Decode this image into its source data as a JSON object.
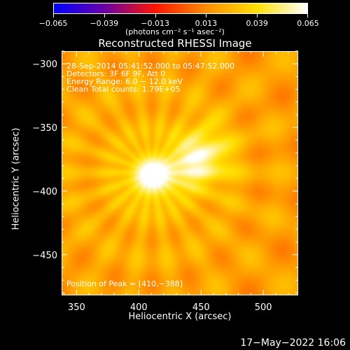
{
  "chart_data": {
    "type": "heatmap",
    "title": "Reconstructed RHESSI Image",
    "xlabel": "Heliocentric X (arcsec)",
    "ylabel": "Heliocentric Y (arcsec)",
    "xlim": [
      338,
      528
    ],
    "ylim": [
      -482,
      -290
    ],
    "xticks": [
      350,
      400,
      450,
      500
    ],
    "xtick_labels": [
      "350",
      "400",
      "450",
      "500"
    ],
    "yticks": [
      -300,
      -350,
      -400,
      -450
    ],
    "ytick_labels": [
      "−300",
      "−350",
      "−400",
      "−450"
    ],
    "colorbar": {
      "min": -0.065,
      "max": 0.065,
      "ticks": [
        -0.065,
        -0.039,
        -0.013,
        0.013,
        0.039,
        0.065
      ],
      "tick_labels": [
        "−0.065",
        "−0.039",
        "−0.013",
        "0.013",
        "0.039",
        "0.065"
      ],
      "units_label": "(photons cm⁻² s⁻¹ asec⁻²)",
      "colors": [
        "#0000ff",
        "#6a00a8",
        "#ff1500",
        "#ff8c00",
        "#ffe000",
        "#ffffff"
      ]
    },
    "sources": [
      {
        "x": 410,
        "y": -388,
        "peak": 0.065
      },
      {
        "x": 452,
        "y": -372,
        "peak": 0.052
      },
      {
        "x": 430,
        "y": -382,
        "peak": 0.03
      }
    ],
    "background_level": 0.018,
    "annotations": {
      "line1": "28-Sep-2014 05:41:52.000 to 05:47:52.000",
      "line2": "Detectors: 3F 6F 9F, Att 0",
      "line3": "Energy Range: 6.0 − 12.0 keV",
      "line4": "Clean    Total counts: 1.79E+05",
      "peak_position": "Position of Peak = [410,−388]"
    }
  },
  "footer": {
    "timestamp": "17−May−2022 16:06"
  }
}
